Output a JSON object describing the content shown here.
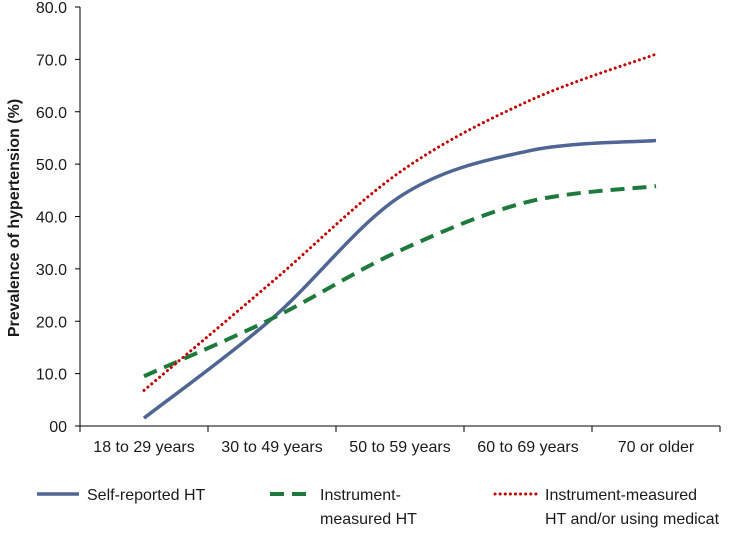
{
  "chart_data": {
    "type": "line",
    "title": "",
    "xlabel": "",
    "ylabel": "Prevalence of hypertension (%)",
    "categories": [
      "18 to 29 years",
      "30 to 49 years",
      "50 to 59 years",
      "60 to 69 years",
      "70 or older"
    ],
    "ylim": [
      0,
      80
    ],
    "yticks": [
      0,
      10,
      20,
      30,
      40,
      50,
      60,
      70,
      80
    ],
    "ytick_labels": [
      "00",
      "10.0",
      "20.0",
      "30.0",
      "40.0",
      "50.0",
      "60.0",
      "70.0",
      "80.0"
    ],
    "grid": false,
    "legend_position": "bottom",
    "series": [
      {
        "name": "Self-reported HT",
        "legend_lines": [
          "Self-reported HT"
        ],
        "values": [
          1.5,
          20.5,
          43.8,
          52.5,
          54.5
        ],
        "color": "#4f6593",
        "style": "solid"
      },
      {
        "name": "Instrument-measured HT",
        "legend_lines": [
          "Instrument-",
          "measured HT"
        ],
        "values": [
          9.5,
          20.5,
          33.5,
          42.8,
          45.8
        ],
        "color": "#1e7a3c",
        "style": "dashed"
      },
      {
        "name": "Instrument-measured HT and/or using medicat",
        "legend_lines": [
          "Instrument-measured",
          "HT and/or using medicat"
        ],
        "values": [
          6.8,
          27.5,
          48.5,
          62.0,
          71.0
        ],
        "color": "#c00000",
        "style": "dotted"
      }
    ]
  }
}
